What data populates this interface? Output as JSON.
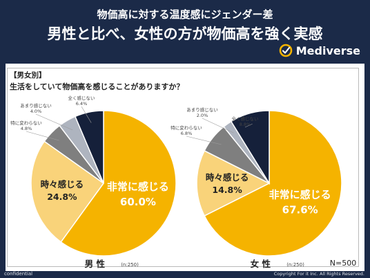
{
  "header": {
    "subtitle": "物価高に対する温度感にジェンダー差",
    "title": "男性と比べ、女性の方が物価高を強く実感",
    "brand": "Mediverse"
  },
  "panel": {
    "tag": "【男女別】",
    "question": "生活をしていて物価高を感じることがありますか？",
    "total": "N=500"
  },
  "footer": {
    "confidential": "confidential",
    "copyright": "Copyright For it Inc. All Rights Reserved."
  },
  "colors": {
    "header_bg": "#1b2a48",
    "very_often": "#f5b300",
    "sometimes": "#f9d37a",
    "no_change": "#7f7f7f",
    "rarely": "#aeb4bf",
    "never": "#15203a"
  },
  "chart_data": [
    {
      "type": "pie",
      "gender": "男 性",
      "sample": "(n:250)",
      "slices": [
        {
          "label": "非常に感じる",
          "value": 60.0,
          "display": "60.0%",
          "color": "#f5b300"
        },
        {
          "label": "時々感じる",
          "value": 24.8,
          "display": "24.8%",
          "color": "#f9d37a"
        },
        {
          "label": "特に変わらない",
          "value": 4.8,
          "display": "4.8%",
          "color": "#7f7f7f"
        },
        {
          "label": "あまり感じない",
          "value": 4.0,
          "display": "4.0%",
          "color": "#aeb4bf"
        },
        {
          "label": "全く感じない",
          "value": 6.4,
          "display": "6.4%",
          "color": "#15203a"
        }
      ]
    },
    {
      "type": "pie",
      "gender": "女 性",
      "sample": "(n:250)",
      "slices": [
        {
          "label": "非常に感じる",
          "value": 67.6,
          "display": "67.6%",
          "color": "#f5b300"
        },
        {
          "label": "時々感じる",
          "value": 14.8,
          "display": "14.8%",
          "color": "#f9d37a"
        },
        {
          "label": "特に変わらない",
          "value": 6.8,
          "display": "6.8%",
          "color": "#7f7f7f"
        },
        {
          "label": "あまり感じない",
          "value": 2.0,
          "display": "2.0%",
          "color": "#aeb4bf"
        },
        {
          "label": "全く感じない",
          "value": 8.8,
          "display": "8.8%",
          "color": "#15203a"
        }
      ]
    }
  ]
}
